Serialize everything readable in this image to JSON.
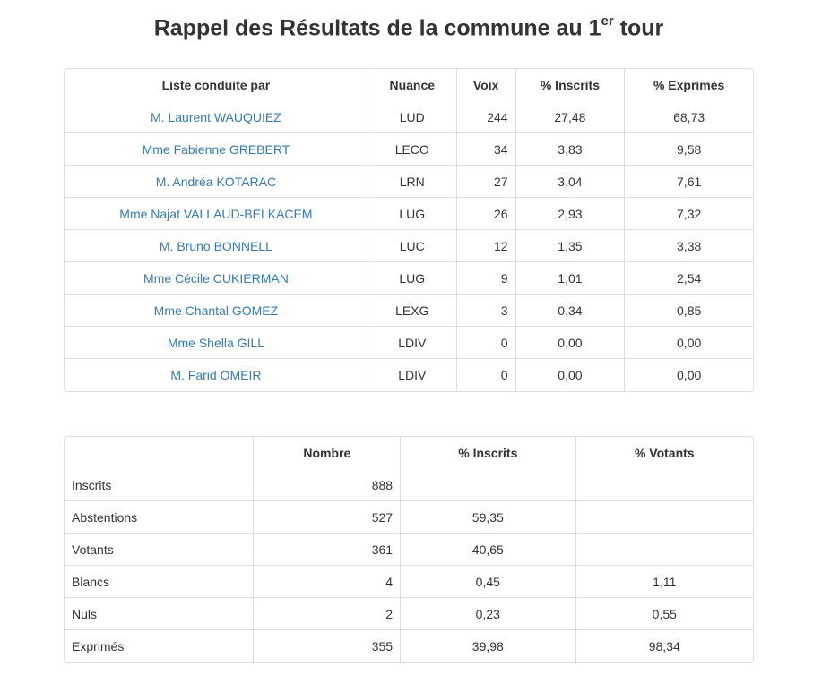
{
  "title": {
    "main": "Rappel des Résultats de la commune au 1",
    "sup": "er",
    "tail": " tour"
  },
  "results": {
    "headers": [
      "Liste conduite par",
      "Nuance",
      "Voix",
      "% Inscrits",
      "% Exprimés"
    ],
    "rows": [
      {
        "name": "M. Laurent WAUQUIEZ",
        "nuance": "LUD",
        "voix": "244",
        "inscrits": "27,48",
        "exprimes": "68,73"
      },
      {
        "name": "Mme Fabienne GREBERT",
        "nuance": "LECO",
        "voix": "34",
        "inscrits": "3,83",
        "exprimes": "9,58"
      },
      {
        "name": "M. Andréa KOTARAC",
        "nuance": "LRN",
        "voix": "27",
        "inscrits": "3,04",
        "exprimes": "7,61"
      },
      {
        "name": "Mme Najat VALLAUD-BELKACEM",
        "nuance": "LUG",
        "voix": "26",
        "inscrits": "2,93",
        "exprimes": "7,32"
      },
      {
        "name": "M. Bruno BONNELL",
        "nuance": "LUC",
        "voix": "12",
        "inscrits": "1,35",
        "exprimes": "3,38"
      },
      {
        "name": "Mme Cécile CUKIERMAN",
        "nuance": "LUG",
        "voix": "9",
        "inscrits": "1,01",
        "exprimes": "2,54"
      },
      {
        "name": "Mme Chantal GOMEZ",
        "nuance": "LEXG",
        "voix": "3",
        "inscrits": "0,34",
        "exprimes": "0,85"
      },
      {
        "name": "Mme Shella GILL",
        "nuance": "LDIV",
        "voix": "0",
        "inscrits": "0,00",
        "exprimes": "0,00"
      },
      {
        "name": "M. Farid OMEIR",
        "nuance": "LDIV",
        "voix": "0",
        "inscrits": "0,00",
        "exprimes": "0,00"
      }
    ]
  },
  "stats": {
    "headers": [
      "",
      "Nombre",
      "% Inscrits",
      "% Votants"
    ],
    "rows": [
      {
        "label": "Inscrits",
        "nombre": "888",
        "inscrits": "",
        "votants": ""
      },
      {
        "label": "Abstentions",
        "nombre": "527",
        "inscrits": "59,35",
        "votants": ""
      },
      {
        "label": "Votants",
        "nombre": "361",
        "inscrits": "40,65",
        "votants": ""
      },
      {
        "label": "Blancs",
        "nombre": "4",
        "inscrits": "0,45",
        "votants": "1,11"
      },
      {
        "label": "Nuls",
        "nombre": "2",
        "inscrits": "0,23",
        "votants": "0,55"
      },
      {
        "label": "Exprimés",
        "nombre": "355",
        "inscrits": "39,98",
        "votants": "98,34"
      }
    ]
  },
  "colors": {
    "link": "#337ab7",
    "border": "#dddddd",
    "text": "#333333"
  }
}
